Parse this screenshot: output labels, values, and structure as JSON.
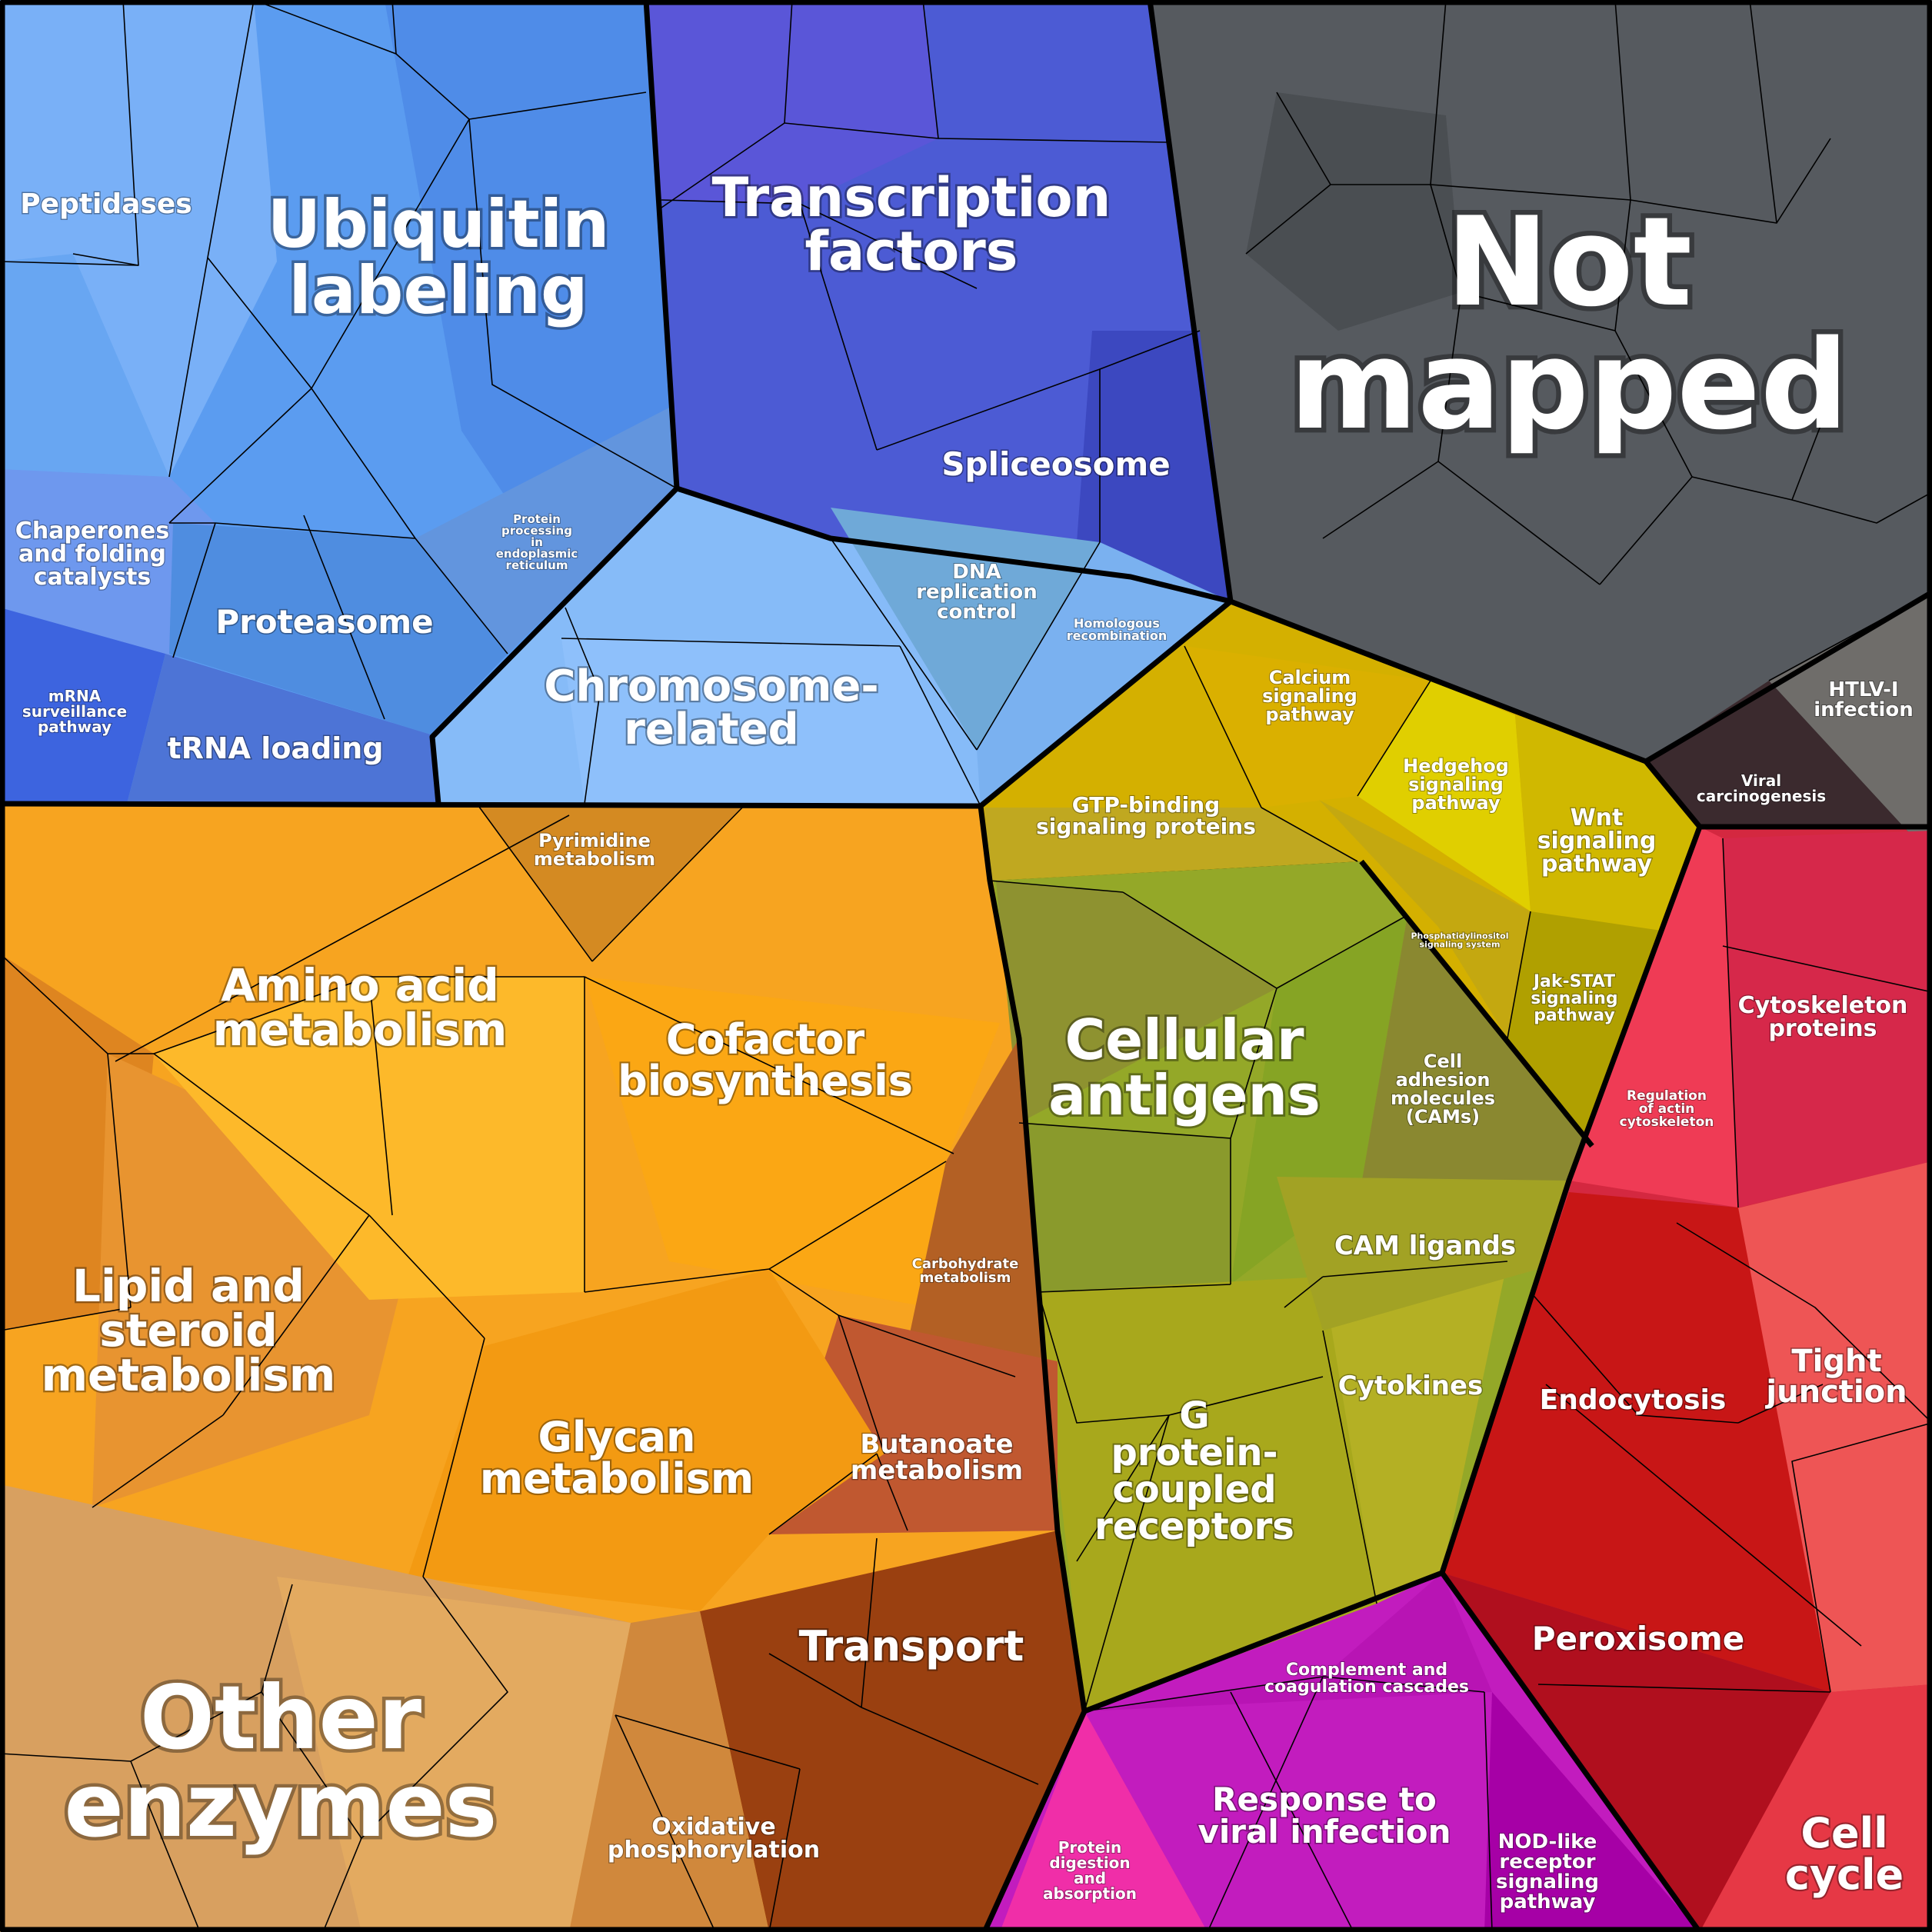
{
  "groups": [
    {
      "id": "protein",
      "color": "#5b9cf0",
      "labels": [
        {
          "key": "peptidases",
          "text": "Peptidases"
        },
        {
          "key": "ubiquitin",
          "text": "Ubiquitin labeling"
        },
        {
          "key": "chaperones",
          "text": "Chaperones and folding catalysts"
        },
        {
          "key": "er_processing",
          "text": "Protein processing in endoplasmic reticulum"
        },
        {
          "key": "proteasome",
          "text": "Proteasome"
        },
        {
          "key": "mrna_surveillance",
          "text": "mRNA surveillance pathway"
        },
        {
          "key": "trna_loading",
          "text": "tRNA loading"
        }
      ]
    },
    {
      "id": "transcription",
      "color": "#4c5bd4",
      "labels": [
        {
          "key": "transcription_factors",
          "text": "Transcription factors"
        },
        {
          "key": "spliceosome",
          "text": "Spliceosome"
        }
      ]
    },
    {
      "id": "chromosome",
      "color": "#86bbf8",
      "labels": [
        {
          "key": "chromosome_related",
          "text": "Chromosome- related"
        },
        {
          "key": "dna_replication",
          "text": "DNA replication control"
        },
        {
          "key": "homologous",
          "text": "Homologous recombination"
        }
      ]
    },
    {
      "id": "not_mapped",
      "color": "#565a5f",
      "labels": [
        {
          "key": "not_mapped",
          "text": "Not mapped"
        },
        {
          "key": "htlv",
          "text": "HTLV-I infection"
        },
        {
          "key": "viral_carcinogenesis",
          "text": "Viral carcinogenesis"
        }
      ]
    },
    {
      "id": "signaling",
      "color": "#d4b000",
      "labels": [
        {
          "key": "calcium",
          "text": "Calcium signaling pathway"
        },
        {
          "key": "hedgehog",
          "text": "Hedgehog signaling pathway"
        },
        {
          "key": "wnt",
          "text": "Wnt signaling pathway"
        },
        {
          "key": "gtp",
          "text": "GTP-binding signaling proteins"
        },
        {
          "key": "phosphatidylinositol",
          "text": "Phosphatidylinositol signaling system"
        },
        {
          "key": "jak_stat",
          "text": "Jak-STAT signaling pathway"
        }
      ]
    },
    {
      "id": "antigens",
      "color": "#94a828",
      "labels": [
        {
          "key": "cellular_antigens",
          "text": "Cellular antigens"
        },
        {
          "key": "cams",
          "text": "Cell adhesion molecules (CAMs)"
        },
        {
          "key": "cam_ligands",
          "text": "CAM ligands"
        },
        {
          "key": "cytokines",
          "text": "Cytokines"
        },
        {
          "key": "gpcr",
          "text": "G protein- coupled receptors"
        }
      ]
    },
    {
      "id": "cell_processes",
      "color": "#d42840",
      "labels": [
        {
          "key": "cytoskeleton",
          "text": "Cytoskeleton proteins"
        },
        {
          "key": "regulation_actin",
          "text": "Regulation of actin cytoskeleton"
        },
        {
          "key": "tight_junction",
          "text": "Tight junction"
        },
        {
          "key": "endocytosis",
          "text": "Endocytosis"
        },
        {
          "key": "peroxisome",
          "text": "Peroxisome"
        },
        {
          "key": "cell_cycle",
          "text": "Cell cycle"
        }
      ]
    },
    {
      "id": "immune",
      "color": "#c21cbe",
      "labels": [
        {
          "key": "complement",
          "text": "Complement and coagulation cascades"
        },
        {
          "key": "protein_digestion",
          "text": "Protein digestion and absorption"
        },
        {
          "key": "response_viral",
          "text": "Response to viral infection"
        },
        {
          "key": "nod_like",
          "text": "NOD-like receptor signaling pathway"
        }
      ]
    },
    {
      "id": "metabolism",
      "color": "#f7a420",
      "labels": [
        {
          "key": "pyrimidine",
          "text": "Pyrimidine metabolism"
        },
        {
          "key": "amino_acid",
          "text": "Amino acid metabolism"
        },
        {
          "key": "cofactor",
          "text": "Cofactor biosynthesis"
        },
        {
          "key": "lipid",
          "text": "Lipid and steroid metabolism"
        },
        {
          "key": "carbohydrate",
          "text": "Carbohydrate metabolism"
        },
        {
          "key": "glycan",
          "text": "Glycan metabolism"
        },
        {
          "key": "butanoate",
          "text": "Butanoate metabolism"
        },
        {
          "key": "transport",
          "text": "Transport"
        },
        {
          "key": "other_enzymes",
          "text": "Other enzymes"
        },
        {
          "key": "oxidative",
          "text": "Oxidative phosphorylation"
        }
      ]
    }
  ]
}
